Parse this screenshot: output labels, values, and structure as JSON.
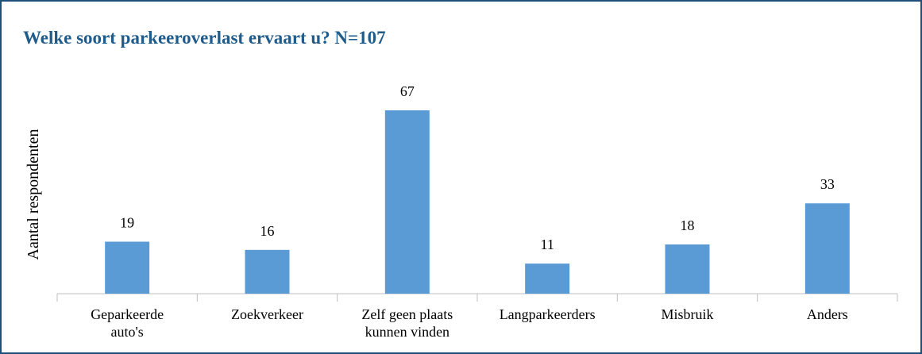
{
  "chart_data": {
    "type": "bar",
    "title": "Welke soort parkeeroverlast ervaart u? N=107",
    "y_axis_label": "Aantal respondenten",
    "categories": [
      "Geparkeerde\nauto's",
      "Zoekverkeer",
      "Zelf geen plaats\nkunnen vinden",
      "Langparkeerders",
      "Misbruik",
      "Anders"
    ],
    "values": [
      19,
      16,
      67,
      11,
      18,
      33
    ],
    "color": "#5b9bd5"
  }
}
